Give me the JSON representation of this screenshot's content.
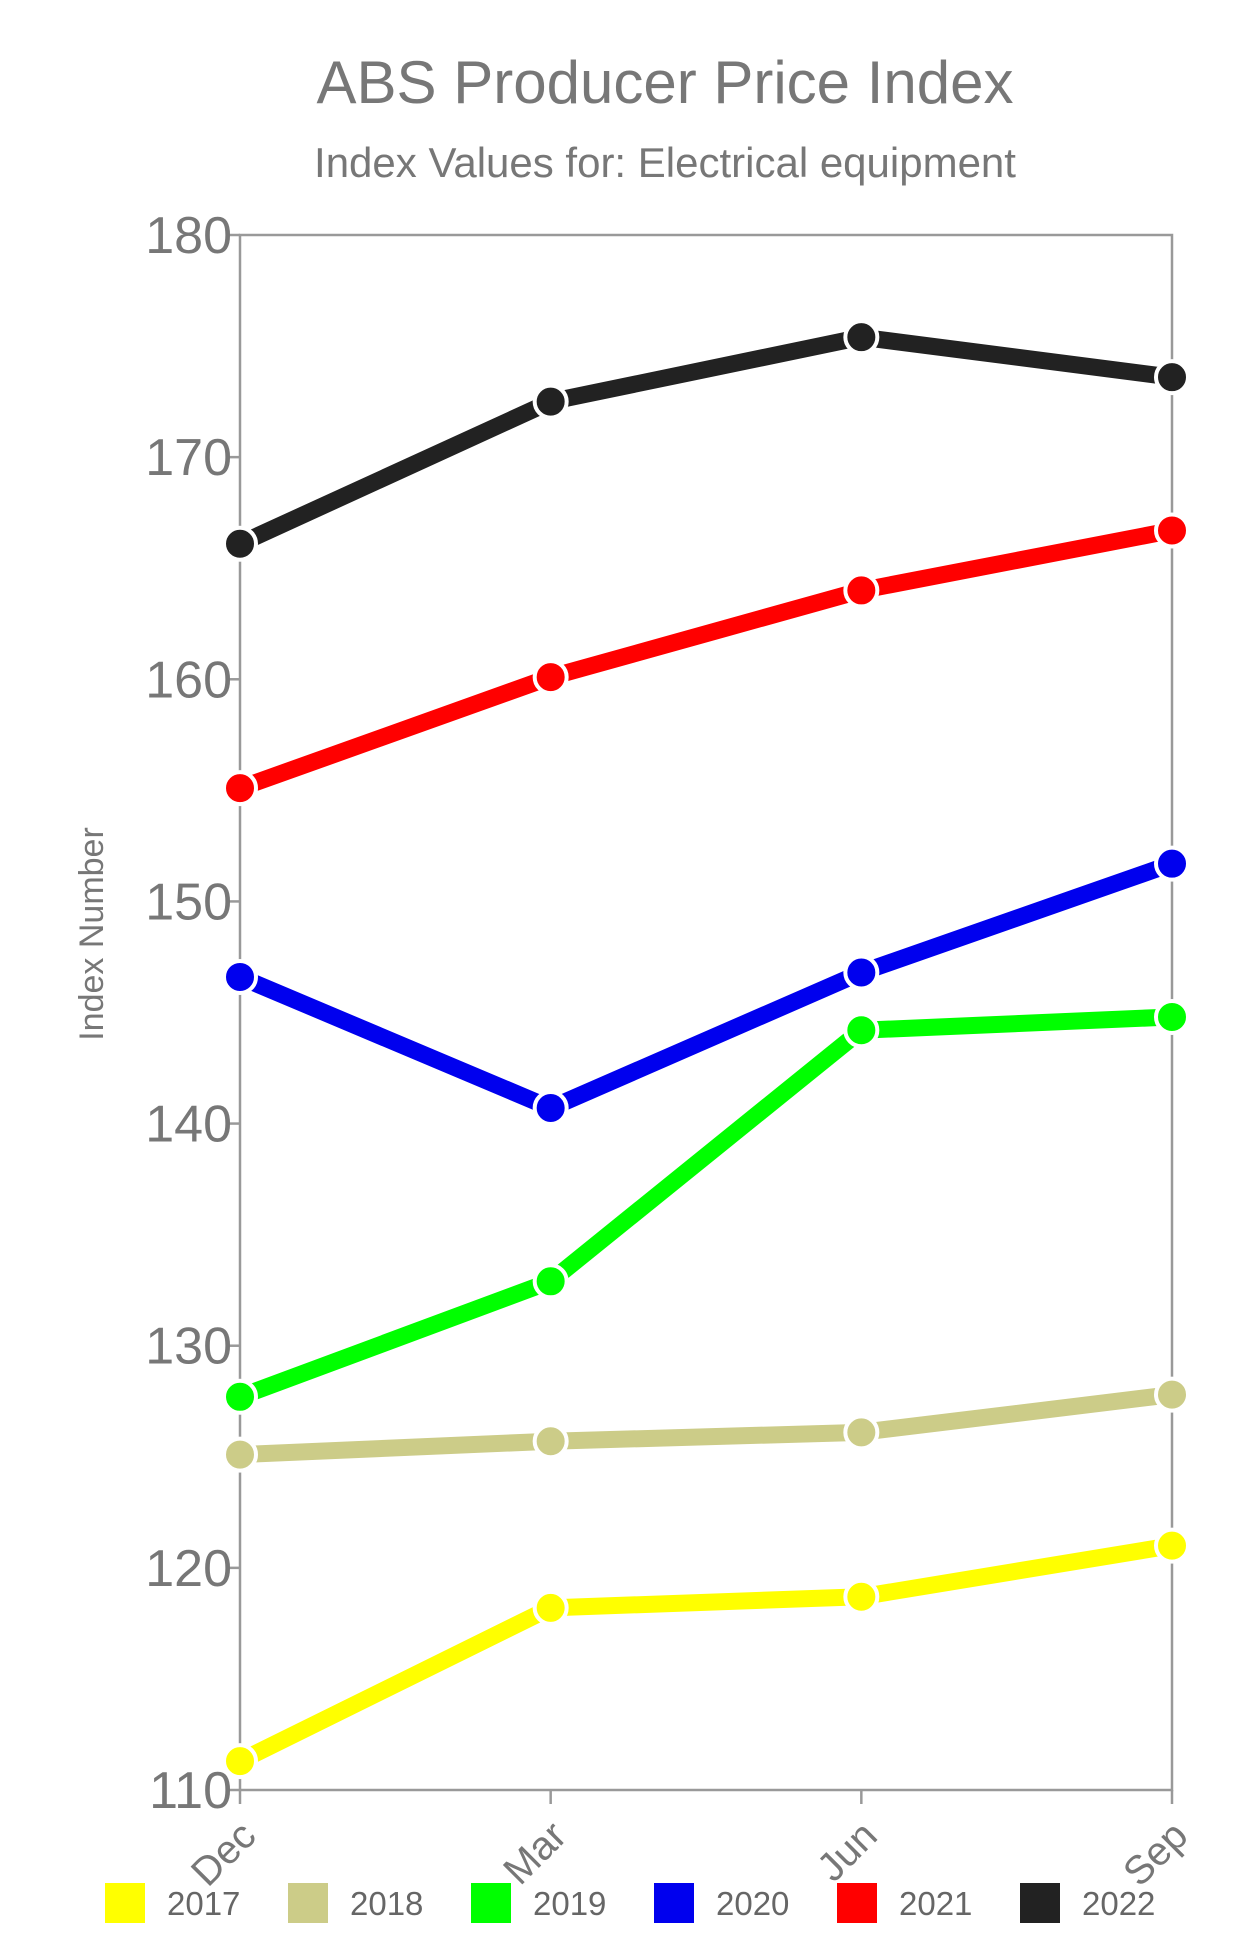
{
  "chart_data": {
    "type": "line",
    "title": "ABS Producer Price Index",
    "subtitle": "Index Values for: Electrical equipment",
    "ylabel": "Index Number",
    "xlabel": "",
    "categories": [
      "Dec",
      "Mar",
      "Jun",
      "Sep"
    ],
    "ylim": [
      110,
      180
    ],
    "yticks": [
      110,
      120,
      130,
      140,
      150,
      160,
      170,
      180
    ],
    "grid": false,
    "legend_position": "bottom",
    "series": [
      {
        "name": "2017",
        "color": "#ffff00",
        "values": [
          111.3,
          118.2,
          118.7,
          121.0
        ]
      },
      {
        "name": "2018",
        "color": "#cccc88",
        "values": [
          125.1,
          125.7,
          126.1,
          127.8
        ]
      },
      {
        "name": "2019",
        "color": "#00ff00",
        "values": [
          127.7,
          132.9,
          144.2,
          144.8
        ]
      },
      {
        "name": "2020",
        "color": "#0000ee",
        "values": [
          146.6,
          140.7,
          146.8,
          151.7
        ]
      },
      {
        "name": "2021",
        "color": "#ff0000",
        "values": [
          155.1,
          160.1,
          164.0,
          166.7
        ]
      },
      {
        "name": "2022",
        "color": "#222222",
        "values": [
          166.1,
          172.5,
          175.4,
          173.6
        ]
      }
    ]
  }
}
